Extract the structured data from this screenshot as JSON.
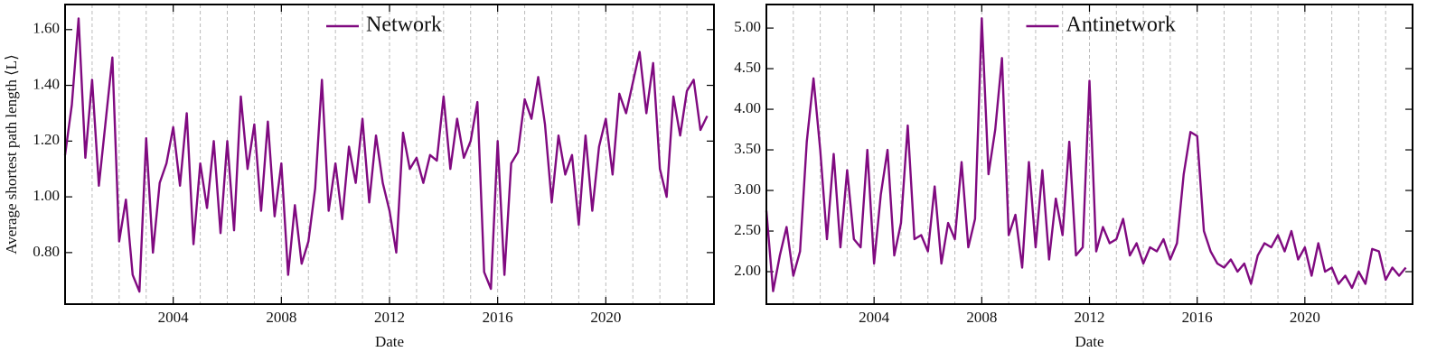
{
  "chart_data": [
    {
      "type": "line",
      "xlabel": "Date",
      "ylabel": "Average shortest path length ⟨L⟩",
      "legend": "upper center",
      "grid": true,
      "xlim": [
        2000,
        2024
      ],
      "xticks": [
        2004,
        2008,
        2012,
        2016,
        2020
      ],
      "x_minor_ticks": [
        2001,
        2002,
        2003,
        2004,
        2005,
        2006,
        2007,
        2008,
        2009,
        2010,
        2011,
        2012,
        2013,
        2014,
        2015,
        2016,
        2017,
        2018,
        2019,
        2020,
        2021,
        2022,
        2023
      ],
      "ylim": [
        0.615,
        1.69
      ],
      "yticks": [
        {
          "value": 0.8,
          "label": "0.80"
        },
        {
          "value": 1.0,
          "label": "1.00"
        },
        {
          "value": 1.2,
          "label": "1.20"
        },
        {
          "value": 1.4,
          "label": "1.40"
        },
        {
          "value": 1.6,
          "label": "1.60"
        }
      ],
      "x": [
        2000,
        2000.25,
        2000.5,
        2000.75,
        2001,
        2001.25,
        2001.5,
        2001.75,
        2002,
        2002.25,
        2002.5,
        2002.75,
        2003,
        2003.25,
        2003.5,
        2003.75,
        2004,
        2004.25,
        2004.5,
        2004.75,
        2005,
        2005.25,
        2005.5,
        2005.75,
        2006,
        2006.25,
        2006.5,
        2006.75,
        2007,
        2007.25,
        2007.5,
        2007.75,
        2008,
        2008.25,
        2008.5,
        2008.75,
        2009,
        2009.25,
        2009.5,
        2009.75,
        2010,
        2010.25,
        2010.5,
        2010.75,
        2011,
        2011.25,
        2011.5,
        2011.75,
        2012,
        2012.25,
        2012.5,
        2012.75,
        2013,
        2013.25,
        2013.5,
        2013.75,
        2014,
        2014.25,
        2014.5,
        2014.75,
        2015,
        2015.25,
        2015.5,
        2015.75,
        2016,
        2016.25,
        2016.5,
        2016.75,
        2017,
        2017.25,
        2017.5,
        2017.75,
        2018,
        2018.25,
        2018.5,
        2018.75,
        2019,
        2019.25,
        2019.5,
        2019.75,
        2020,
        2020.25,
        2020.5,
        2020.75,
        2021,
        2021.25,
        2021.5,
        2021.75,
        2022,
        2022.25,
        2022.5,
        2022.75,
        2023,
        2023.25,
        2023.5,
        2023.75
      ],
      "series": [
        {
          "name": "Network",
          "color": "#800a80",
          "values": [
            1.15,
            1.33,
            1.64,
            1.14,
            1.42,
            1.04,
            1.27,
            1.5,
            0.84,
            0.99,
            0.72,
            0.66,
            1.21,
            0.8,
            1.05,
            1.12,
            1.25,
            1.04,
            1.3,
            0.83,
            1.12,
            0.96,
            1.2,
            0.87,
            1.2,
            0.88,
            1.36,
            1.1,
            1.26,
            0.95,
            1.27,
            0.93,
            1.12,
            0.72,
            0.97,
            0.76,
            0.84,
            1.03,
            1.42,
            0.95,
            1.12,
            0.92,
            1.18,
            1.05,
            1.28,
            0.98,
            1.22,
            1.05,
            0.95,
            0.8,
            1.23,
            1.1,
            1.14,
            1.05,
            1.15,
            1.13,
            1.36,
            1.1,
            1.28,
            1.14,
            1.2,
            1.34,
            0.73,
            0.67,
            1.2,
            0.72,
            1.12,
            1.16,
            1.35,
            1.28,
            1.43,
            1.26,
            0.98,
            1.22,
            1.08,
            1.15,
            0.9,
            1.22,
            0.95,
            1.18,
            1.28,
            1.08,
            1.37,
            1.3,
            1.41,
            1.52,
            1.3,
            1.48,
            1.1,
            1.0,
            1.36,
            1.22,
            1.38,
            1.42,
            1.24,
            1.29
          ]
        }
      ]
    },
    {
      "type": "line",
      "xlabel": "Date",
      "legend": "upper center",
      "grid": true,
      "xlim": [
        2000,
        2024
      ],
      "xticks": [
        2004,
        2008,
        2012,
        2016,
        2020
      ],
      "x_minor_ticks": [
        2001,
        2002,
        2003,
        2004,
        2005,
        2006,
        2007,
        2008,
        2009,
        2010,
        2011,
        2012,
        2013,
        2014,
        2015,
        2016,
        2017,
        2018,
        2019,
        2020,
        2021,
        2022,
        2023
      ],
      "ylim": [
        1.6,
        5.29
      ],
      "yticks": [
        {
          "value": 2.0,
          "label": "2.00"
        },
        {
          "value": 2.5,
          "label": "2.50"
        },
        {
          "value": 3.0,
          "label": "3.00"
        },
        {
          "value": 3.5,
          "label": "3.50"
        },
        {
          "value": 4.0,
          "label": "4.00"
        },
        {
          "value": 4.5,
          "label": "4.50"
        },
        {
          "value": 5.0,
          "label": "5.00"
        }
      ],
      "x": [
        2000,
        2000.25,
        2000.5,
        2000.75,
        2001,
        2001.25,
        2001.5,
        2001.75,
        2002,
        2002.25,
        2002.5,
        2002.75,
        2003,
        2003.25,
        2003.5,
        2003.75,
        2004,
        2004.25,
        2004.5,
        2004.75,
        2005,
        2005.25,
        2005.5,
        2005.75,
        2006,
        2006.25,
        2006.5,
        2006.75,
        2007,
        2007.25,
        2007.5,
        2007.75,
        2008,
        2008.25,
        2008.5,
        2008.75,
        2009,
        2009.25,
        2009.5,
        2009.75,
        2010,
        2010.25,
        2010.5,
        2010.75,
        2011,
        2011.25,
        2011.5,
        2011.75,
        2012,
        2012.25,
        2012.5,
        2012.75,
        2013,
        2013.25,
        2013.5,
        2013.75,
        2014,
        2014.25,
        2014.5,
        2014.75,
        2015,
        2015.25,
        2015.5,
        2015.75,
        2016,
        2016.25,
        2016.5,
        2016.75,
        2017,
        2017.25,
        2017.5,
        2017.75,
        2018,
        2018.25,
        2018.5,
        2018.75,
        2019,
        2019.25,
        2019.5,
        2019.75,
        2020,
        2020.25,
        2020.5,
        2020.75,
        2021,
        2021.25,
        2021.5,
        2021.75,
        2022,
        2022.25,
        2022.5,
        2022.75,
        2023,
        2023.25,
        2023.5,
        2023.75
      ],
      "series": [
        {
          "name": "Antinetwork",
          "color": "#800a80",
          "values": [
            2.75,
            1.76,
            2.2,
            2.55,
            1.95,
            2.25,
            3.6,
            4.38,
            3.5,
            2.4,
            3.45,
            2.3,
            3.25,
            2.4,
            2.3,
            3.5,
            2.1,
            2.95,
            3.5,
            2.2,
            2.6,
            3.8,
            2.4,
            2.45,
            2.25,
            3.05,
            2.1,
            2.6,
            2.4,
            3.35,
            2.3,
            2.65,
            5.12,
            3.2,
            3.75,
            4.63,
            2.45,
            2.7,
            2.05,
            3.35,
            2.3,
            3.25,
            2.15,
            2.9,
            2.45,
            3.6,
            2.2,
            2.3,
            4.35,
            2.25,
            2.55,
            2.35,
            2.4,
            2.65,
            2.2,
            2.35,
            2.1,
            2.3,
            2.25,
            2.4,
            2.15,
            2.35,
            3.2,
            3.72,
            3.67,
            2.5,
            2.25,
            2.1,
            2.05,
            2.15,
            2.0,
            2.1,
            1.85,
            2.2,
            2.35,
            2.3,
            2.45,
            2.25,
            2.5,
            2.15,
            2.3,
            1.95,
            2.35,
            2.0,
            2.05,
            1.85,
            1.95,
            1.8,
            2.0,
            1.85,
            2.28,
            2.25,
            1.9,
            2.05,
            1.95,
            2.05
          ]
        }
      ]
    }
  ]
}
